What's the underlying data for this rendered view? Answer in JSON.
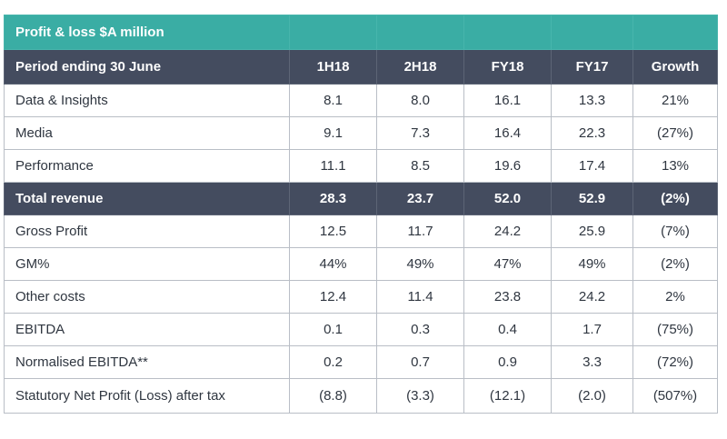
{
  "title": "Profit & loss $A million",
  "header": {
    "label": "Period ending 30 June",
    "columns": [
      "1H18",
      "2H18",
      "FY18",
      "FY17",
      "Growth"
    ]
  },
  "rows": [
    {
      "label": "Data & Insights",
      "values": [
        "8.1",
        "8.0",
        "16.1",
        "13.3",
        "21%"
      ],
      "total": false
    },
    {
      "label": "Media",
      "values": [
        "9.1",
        "7.3",
        "16.4",
        "22.3",
        "(27%)"
      ],
      "total": false
    },
    {
      "label": "Performance",
      "values": [
        "11.1",
        "8.5",
        "19.6",
        "17.4",
        "13%"
      ],
      "total": false
    },
    {
      "label": "Total revenue",
      "values": [
        "28.3",
        "23.7",
        "52.0",
        "52.9",
        "(2%)"
      ],
      "total": true
    },
    {
      "label": "Gross Profit",
      "values": [
        "12.5",
        "11.7",
        "24.2",
        "25.9",
        "(7%)"
      ],
      "total": false
    },
    {
      "label": "GM%",
      "values": [
        "44%",
        "49%",
        "47%",
        "49%",
        "(2%)"
      ],
      "total": false
    },
    {
      "label": "Other costs",
      "values": [
        "12.4",
        "11.4",
        "23.8",
        "24.2",
        "2%"
      ],
      "total": false
    },
    {
      "label": "EBITDA",
      "values": [
        "0.1",
        "0.3",
        "0.4",
        "1.7",
        "(75%)"
      ],
      "total": false
    },
    {
      "label": "Normalised EBITDA**",
      "values": [
        "0.2",
        "0.7",
        "0.9",
        "3.3",
        "(72%)"
      ],
      "total": false
    },
    {
      "label": "Statutory Net Profit (Loss) after tax",
      "values": [
        "(8.8)",
        "(3.3)",
        "(12.1)",
        "(2.0)",
        "(507%)"
      ],
      "total": false
    }
  ],
  "colors": {
    "title_bg": "#3aada4",
    "header_bg": "#444c5f",
    "border": "#b9bec6"
  }
}
